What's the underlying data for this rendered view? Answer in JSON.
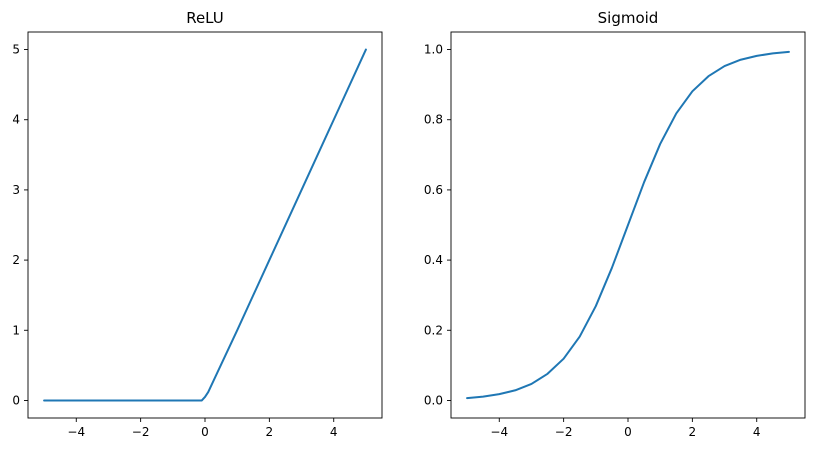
{
  "chart_data": [
    {
      "type": "line",
      "title": "ReLU",
      "xlabel": "",
      "ylabel": "",
      "xlim": [
        -5.5,
        5.5
      ],
      "ylim": [
        -0.25,
        5.25
      ],
      "xticks": [
        -4,
        -2,
        0,
        2,
        4
      ],
      "xtick_labels": [
        "−4",
        "−2",
        "0",
        "2",
        "4"
      ],
      "yticks": [
        0,
        1,
        2,
        3,
        4,
        5
      ],
      "ytick_labels": [
        "0",
        "1",
        "2",
        "3",
        "4",
        "5"
      ],
      "grid": false,
      "series": [
        {
          "color": "#1f77b4",
          "x": [
            -5,
            -4,
            -3,
            -2,
            -1,
            -0.1,
            0,
            0.1,
            1,
            2,
            3,
            4,
            5
          ],
          "y": [
            0,
            0,
            0,
            0,
            0,
            0,
            0.05,
            0.12,
            1,
            2,
            3,
            4,
            5
          ]
        }
      ]
    },
    {
      "type": "line",
      "title": "Sigmoid",
      "xlabel": "",
      "ylabel": "",
      "xlim": [
        -5.5,
        5.5
      ],
      "ylim": [
        -0.05,
        1.05
      ],
      "xticks": [
        -4,
        -2,
        0,
        2,
        4
      ],
      "xtick_labels": [
        "−4",
        "−2",
        "0",
        "2",
        "4"
      ],
      "yticks": [
        0.0,
        0.2,
        0.4,
        0.6,
        0.8,
        1.0
      ],
      "ytick_labels": [
        "0.0",
        "0.2",
        "0.4",
        "0.6",
        "0.8",
        "1.0"
      ],
      "grid": false,
      "series": [
        {
          "color": "#1f77b4",
          "x": [
            -5,
            -4.5,
            -4,
            -3.5,
            -3,
            -2.5,
            -2,
            -1.5,
            -1,
            -0.5,
            0,
            0.5,
            1,
            1.5,
            2,
            2.5,
            3,
            3.5,
            4,
            4.5,
            5
          ],
          "y": [
            0.0067,
            0.011,
            0.018,
            0.029,
            0.047,
            0.076,
            0.119,
            0.182,
            0.269,
            0.378,
            0.5,
            0.622,
            0.731,
            0.818,
            0.881,
            0.924,
            0.953,
            0.971,
            0.982,
            0.989,
            0.9933
          ]
        }
      ]
    }
  ]
}
